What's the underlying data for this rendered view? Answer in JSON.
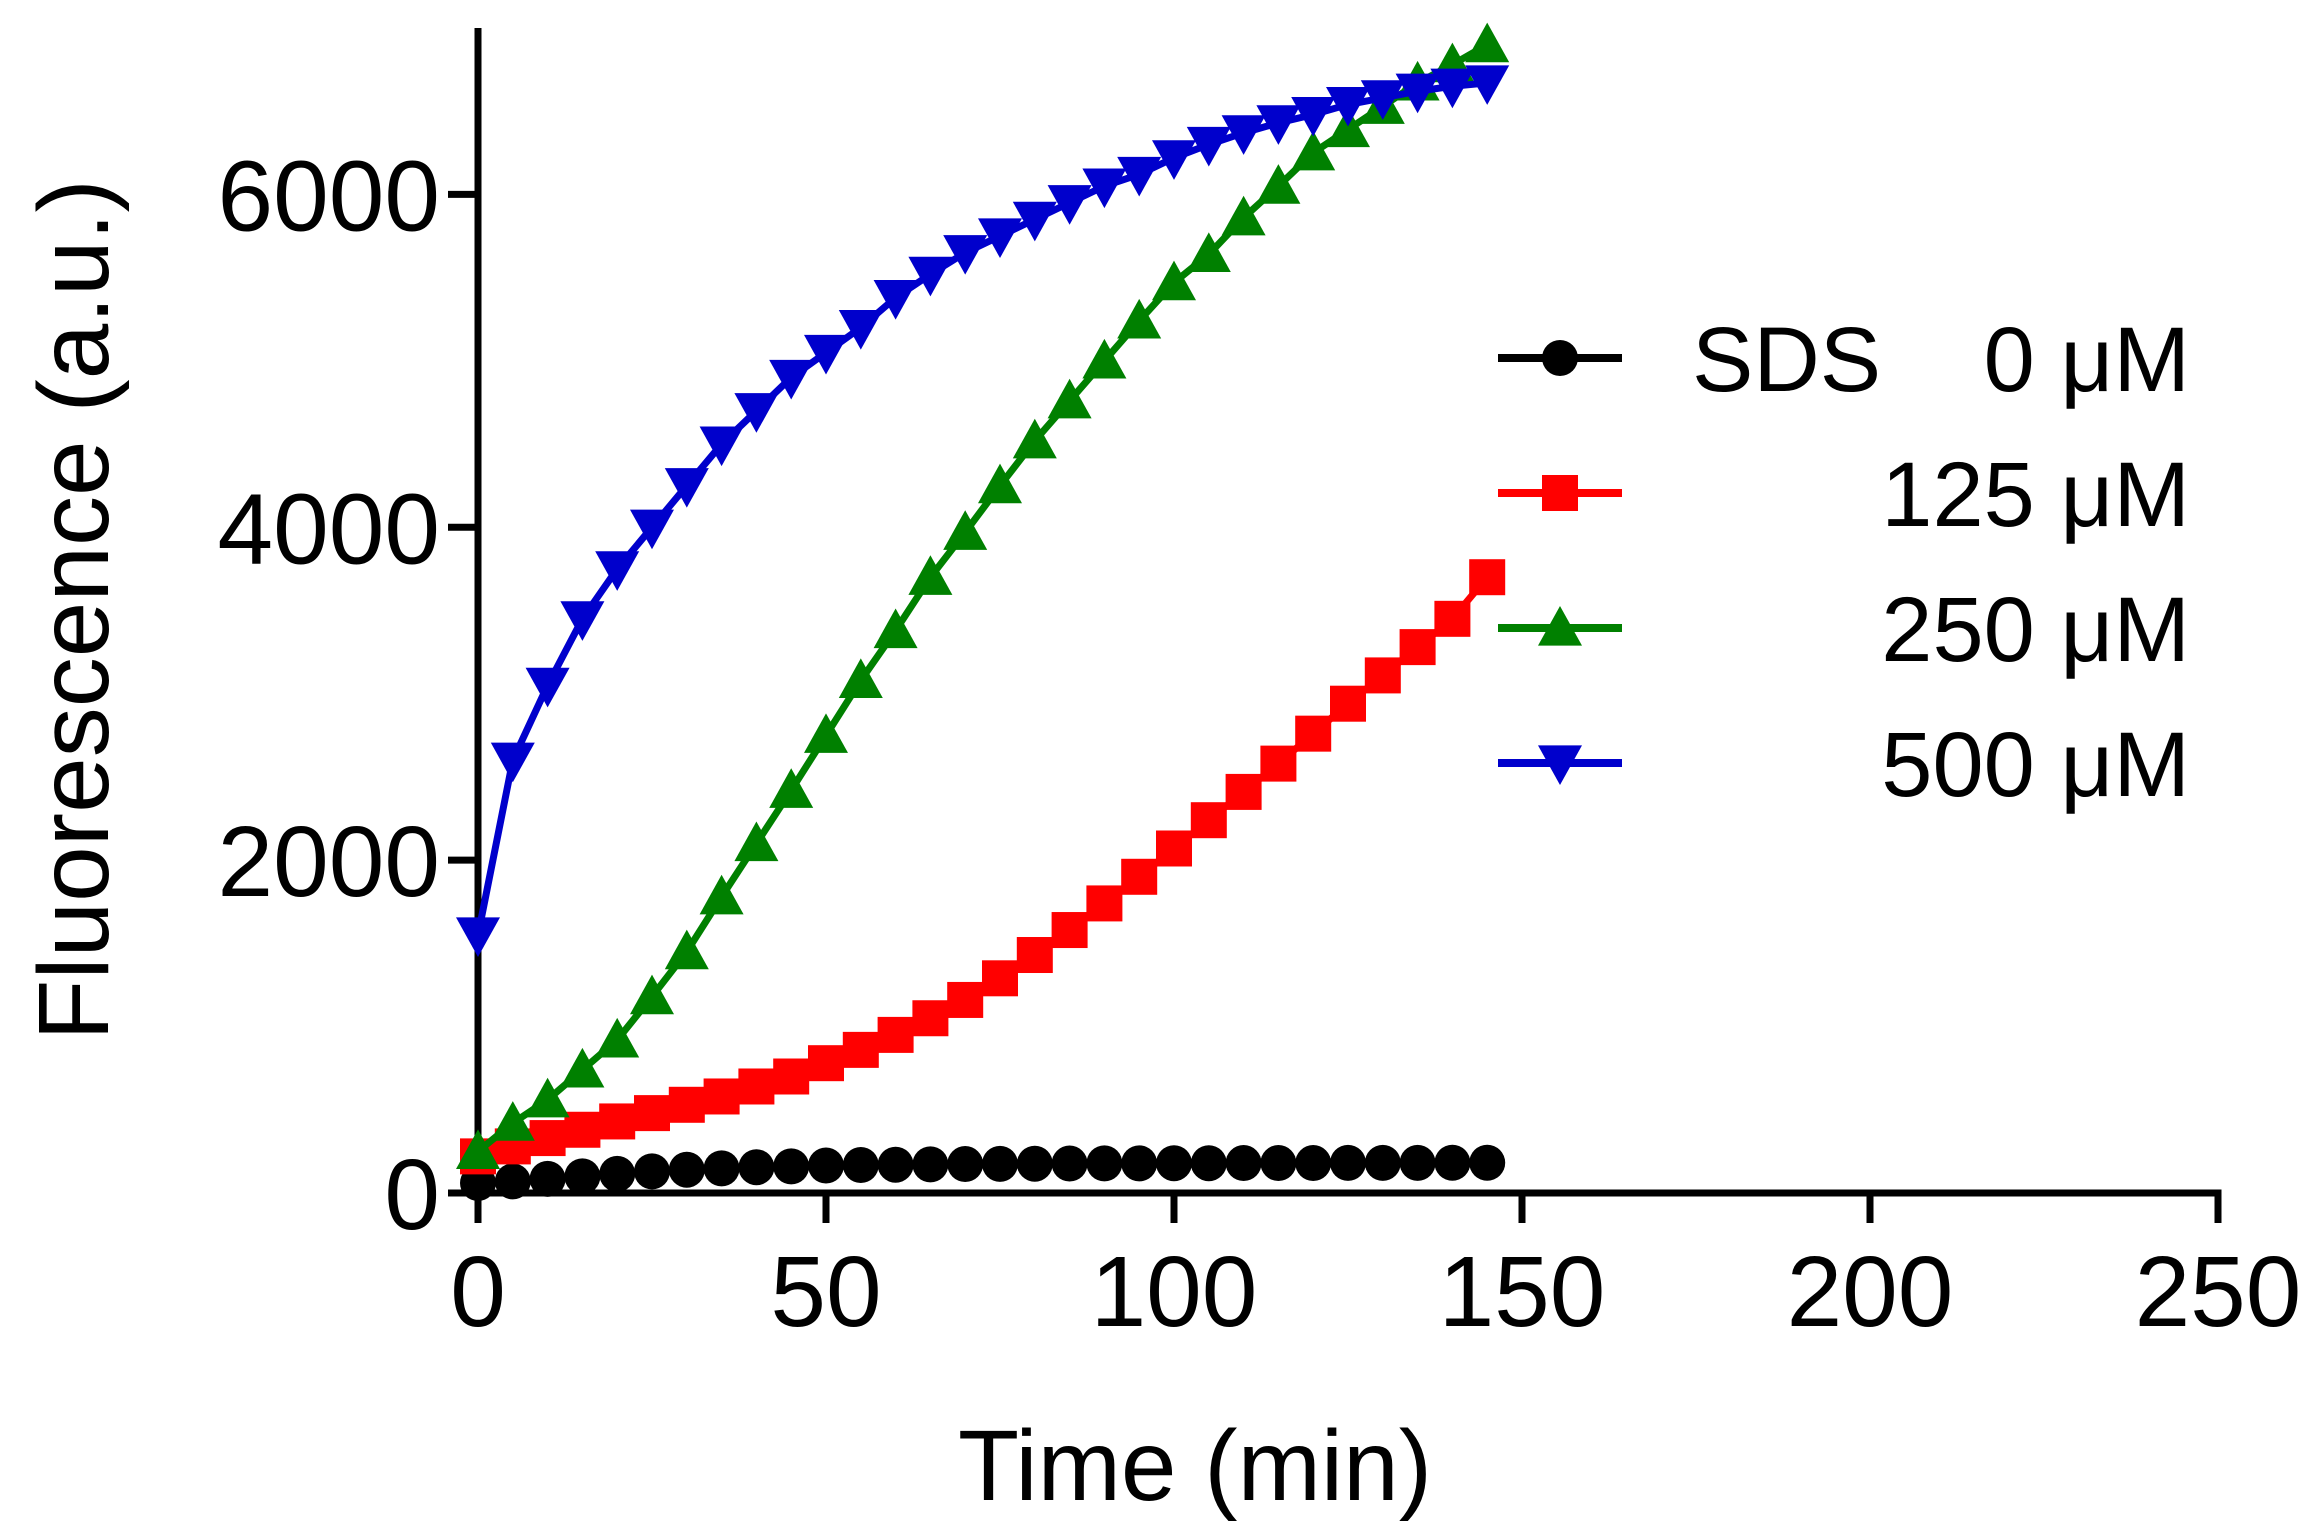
{
  "chart_data": {
    "type": "line",
    "title": "",
    "xlabel": "Time (min)",
    "ylabel": "Fluorescence (a.u.)",
    "xlim": [
      0,
      250
    ],
    "ylim": [
      0,
      7000
    ],
    "xticks": [
      0,
      50,
      100,
      150,
      200,
      250
    ],
    "yticks": [
      0,
      2000,
      4000,
      6000
    ],
    "xtick_labels": [
      "0",
      "50",
      "100",
      "150",
      "200",
      "250"
    ],
    "ytick_labels": [
      "0",
      "2000",
      "4000",
      "6000"
    ],
    "grid": false,
    "legend_position": "right",
    "legend_prefix": "SDS",
    "x": [
      0,
      5,
      10,
      15,
      20,
      25,
      30,
      35,
      40,
      45,
      50,
      55,
      60,
      65,
      70,
      75,
      80,
      85,
      90,
      95,
      100,
      105,
      110,
      115,
      120,
      125,
      130,
      135,
      140,
      145
    ],
    "series": [
      {
        "name": "0 μM",
        "color": "#000000",
        "marker": "circle",
        "values": [
          60,
          70,
          85,
          100,
          115,
          130,
          140,
          148,
          155,
          160,
          165,
          168,
          170,
          172,
          174,
          175,
          176,
          177,
          178,
          178,
          179,
          179,
          180,
          180,
          180,
          181,
          181,
          181,
          182,
          182
        ]
      },
      {
        "name": "125 μM",
        "color": "#ff0000",
        "marker": "square",
        "values": [
          220,
          280,
          330,
          380,
          430,
          480,
          530,
          580,
          640,
          700,
          780,
          860,
          950,
          1050,
          1160,
          1290,
          1430,
          1580,
          1740,
          1900,
          2070,
          2240,
          2410,
          2580,
          2760,
          2940,
          3110,
          3280,
          3450,
          3700
        ]
      },
      {
        "name": "250 μM",
        "color": "#008000",
        "marker": "triangle-up",
        "values": [
          250,
          420,
          560,
          740,
          920,
          1180,
          1450,
          1780,
          2100,
          2420,
          2750,
          3080,
          3380,
          3700,
          3970,
          4250,
          4520,
          4760,
          5000,
          5240,
          5470,
          5640,
          5860,
          6050,
          6250,
          6390,
          6530,
          6670,
          6780,
          6900
        ]
      },
      {
        "name": "500 μM",
        "color": "#0000cc",
        "marker": "triangle-down",
        "values": [
          1550,
          2600,
          3050,
          3450,
          3750,
          4000,
          4250,
          4500,
          4700,
          4900,
          5050,
          5200,
          5380,
          5520,
          5650,
          5750,
          5850,
          5950,
          6050,
          6120,
          6220,
          6300,
          6370,
          6430,
          6480,
          6540,
          6580,
          6620,
          6650,
          6670
        ]
      }
    ]
  }
}
